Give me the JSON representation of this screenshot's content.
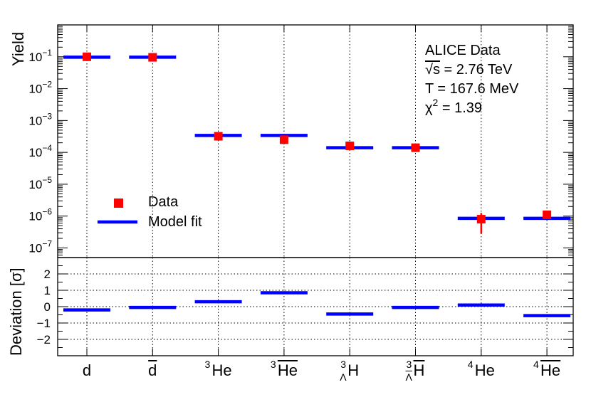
{
  "chart_data": [
    {
      "type": "scatter",
      "panel": "top",
      "ylabel": "Yield",
      "yscale": "log",
      "ylim": [
        5e-08,
        1.0
      ],
      "categories": [
        "d",
        "d̄",
        "³He",
        "³H̄e",
        "³ΛH",
        "³Λ̄H̄",
        "⁴He",
        "⁴H̄e"
      ],
      "series": [
        {
          "name": "Data",
          "marker": "square",
          "color": "#ff0000",
          "values": [
            0.1,
            0.096,
            0.00032,
            0.00025,
            0.00016,
            0.00014,
            8e-07,
            1.1e-06
          ],
          "err_low": [
            0.085,
            0.081,
            0.00027,
            0.0002,
            0.00013,
            0.000115,
            2.8e-07,
            9e-07
          ],
          "err_high": [
            0.118,
            0.113,
            0.00037,
            0.0003,
            0.00019,
            0.00017,
            1.25e-06,
            1.3e-06
          ]
        },
        {
          "name": "Model fit",
          "marker": "hline",
          "color": "#0000ff",
          "values": [
            0.097,
            0.097,
            0.00034,
            0.00034,
            0.00014,
            0.00014,
            8.5e-07,
            8.5e-07
          ]
        }
      ],
      "yticks": [
        {
          "v": 1e-07,
          "label": "10",
          "exp": "−7"
        },
        {
          "v": 1e-06,
          "label": "10",
          "exp": "−6"
        },
        {
          "v": 1e-05,
          "label": "10",
          "exp": "−5"
        },
        {
          "v": 0.0001,
          "label": "10",
          "exp": "−4"
        },
        {
          "v": 0.001,
          "label": "10",
          "exp": "−3"
        },
        {
          "v": 0.01,
          "label": "10",
          "exp": "−2"
        },
        {
          "v": 0.1,
          "label": "10",
          "exp": "−1"
        }
      ],
      "grid": "vertical-dotted",
      "legend": {
        "position": "bottom-left",
        "entries": [
          "Data",
          "Model fit"
        ]
      },
      "annotations": {
        "line1": "ALICE Data",
        "line2_prefix": "√s",
        "line2_value": " = 2.76 TeV",
        "line3": "T = 167.6 MeV",
        "line4_symbol": "χ",
        "line4_sup": "2",
        "line4_value": " = 1.39"
      }
    },
    {
      "type": "scatter",
      "panel": "bottom",
      "ylabel": "Deviation [σ]",
      "ylim": [
        -3,
        3
      ],
      "yticks": [
        -2,
        -1,
        0,
        1,
        2
      ],
      "ytick_labels": [
        "−2",
        "−1",
        "0",
        "1",
        "2"
      ],
      "categories": [
        "d",
        "d̄",
        "³He",
        "³H̄e",
        "³ΛH",
        "³Λ̄H̄",
        "⁴He",
        "⁴H̄e"
      ],
      "series": [
        {
          "name": "Deviation",
          "marker": "hline",
          "color": "#0000ff",
          "values": [
            -0.2,
            -0.05,
            0.3,
            0.85,
            -0.45,
            -0.05,
            0.1,
            -0.55
          ]
        }
      ],
      "grid": "dotted"
    }
  ],
  "xlabels": [
    {
      "pre": "",
      "main": "d",
      "over": false,
      "sub": ""
    },
    {
      "pre": "",
      "main": "d",
      "over": true,
      "sub": ""
    },
    {
      "pre": "3",
      "main": "He",
      "over": false,
      "sub": ""
    },
    {
      "pre": "3",
      "main": "He",
      "over": true,
      "sub": ""
    },
    {
      "pre": "3",
      "main": "H",
      "over": false,
      "sub": "Λ"
    },
    {
      "pre": "3",
      "main": "H",
      "over": true,
      "sub": "Λ"
    },
    {
      "pre": "4",
      "main": "He",
      "over": false,
      "sub": ""
    },
    {
      "pre": "4",
      "main": "He",
      "over": true,
      "sub": ""
    }
  ]
}
